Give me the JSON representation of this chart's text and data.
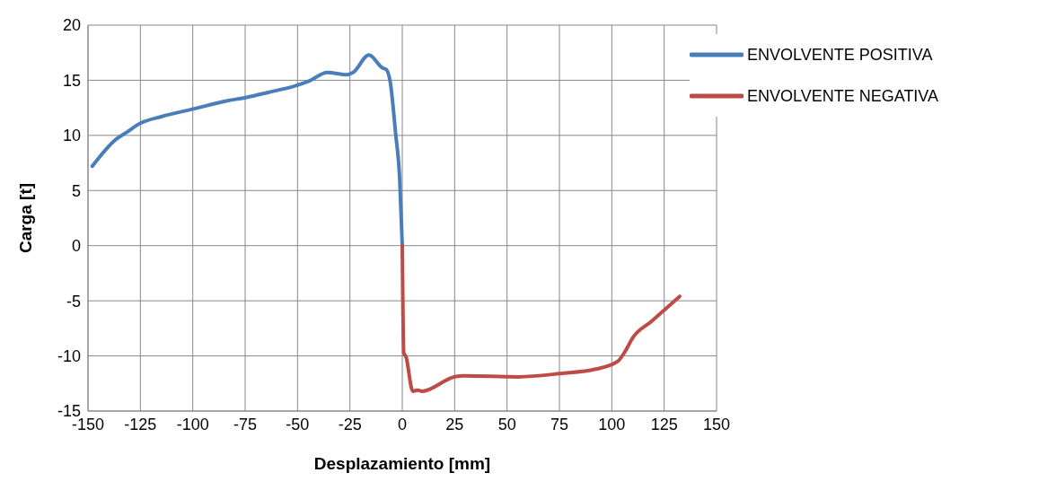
{
  "chart_data": {
    "type": "line",
    "xlabel": "Desplazamiento [mm]",
    "ylabel": "Carga [t]",
    "xlim": [
      -150,
      150
    ],
    "xticks": [
      -150,
      -125,
      -100,
      -75,
      -50,
      -25,
      0,
      25,
      50,
      75,
      100,
      125,
      150
    ],
    "ylim": [
      -15,
      20
    ],
    "yticks": [
      -15,
      -10,
      -5,
      0,
      5,
      10,
      15,
      20
    ],
    "grid": true,
    "legend": "top right",
    "marker": "none",
    "line_style": "solid",
    "series": [
      {
        "name": "ENVOLVENTE POSITIVA",
        "color": "#4a7ebb",
        "x": [
          -148,
          -136.3,
          -132.2,
          -125,
          -115,
          -99.7,
          -84.5,
          -74.3,
          -64.1,
          -51,
          -44.8,
          -35.7,
          -26.5,
          -23.5,
          -15.9,
          -9.3,
          -7.8,
          -5.8,
          -3.2,
          -1.2,
          0
        ],
        "values": [
          7.2,
          9.7,
          10.2,
          11.1,
          11.7,
          12.4,
          13.1,
          13.45,
          13.9,
          14.5,
          14.9,
          15.7,
          15.5,
          15.7,
          17.3,
          16.1,
          16.0,
          14.9,
          10.2,
          5.9,
          0
        ]
      },
      {
        "name": "ENVOLVENTE NEGATIVA",
        "color": "#be4b48",
        "x": [
          0,
          0.7,
          1.8,
          5,
          7.4,
          9.5,
          24.8,
          29,
          55.4,
          75.4,
          92.3,
          102.8,
          106,
          110.2,
          118.7,
          132.4
        ],
        "values": [
          0,
          -9.7,
          -10.1,
          -13.2,
          -13.1,
          -13.2,
          -11.9,
          -11.8,
          -11.9,
          -11.6,
          -11.2,
          -10.5,
          -9.7,
          -8.3,
          -6.9,
          -4.6
        ]
      }
    ]
  }
}
